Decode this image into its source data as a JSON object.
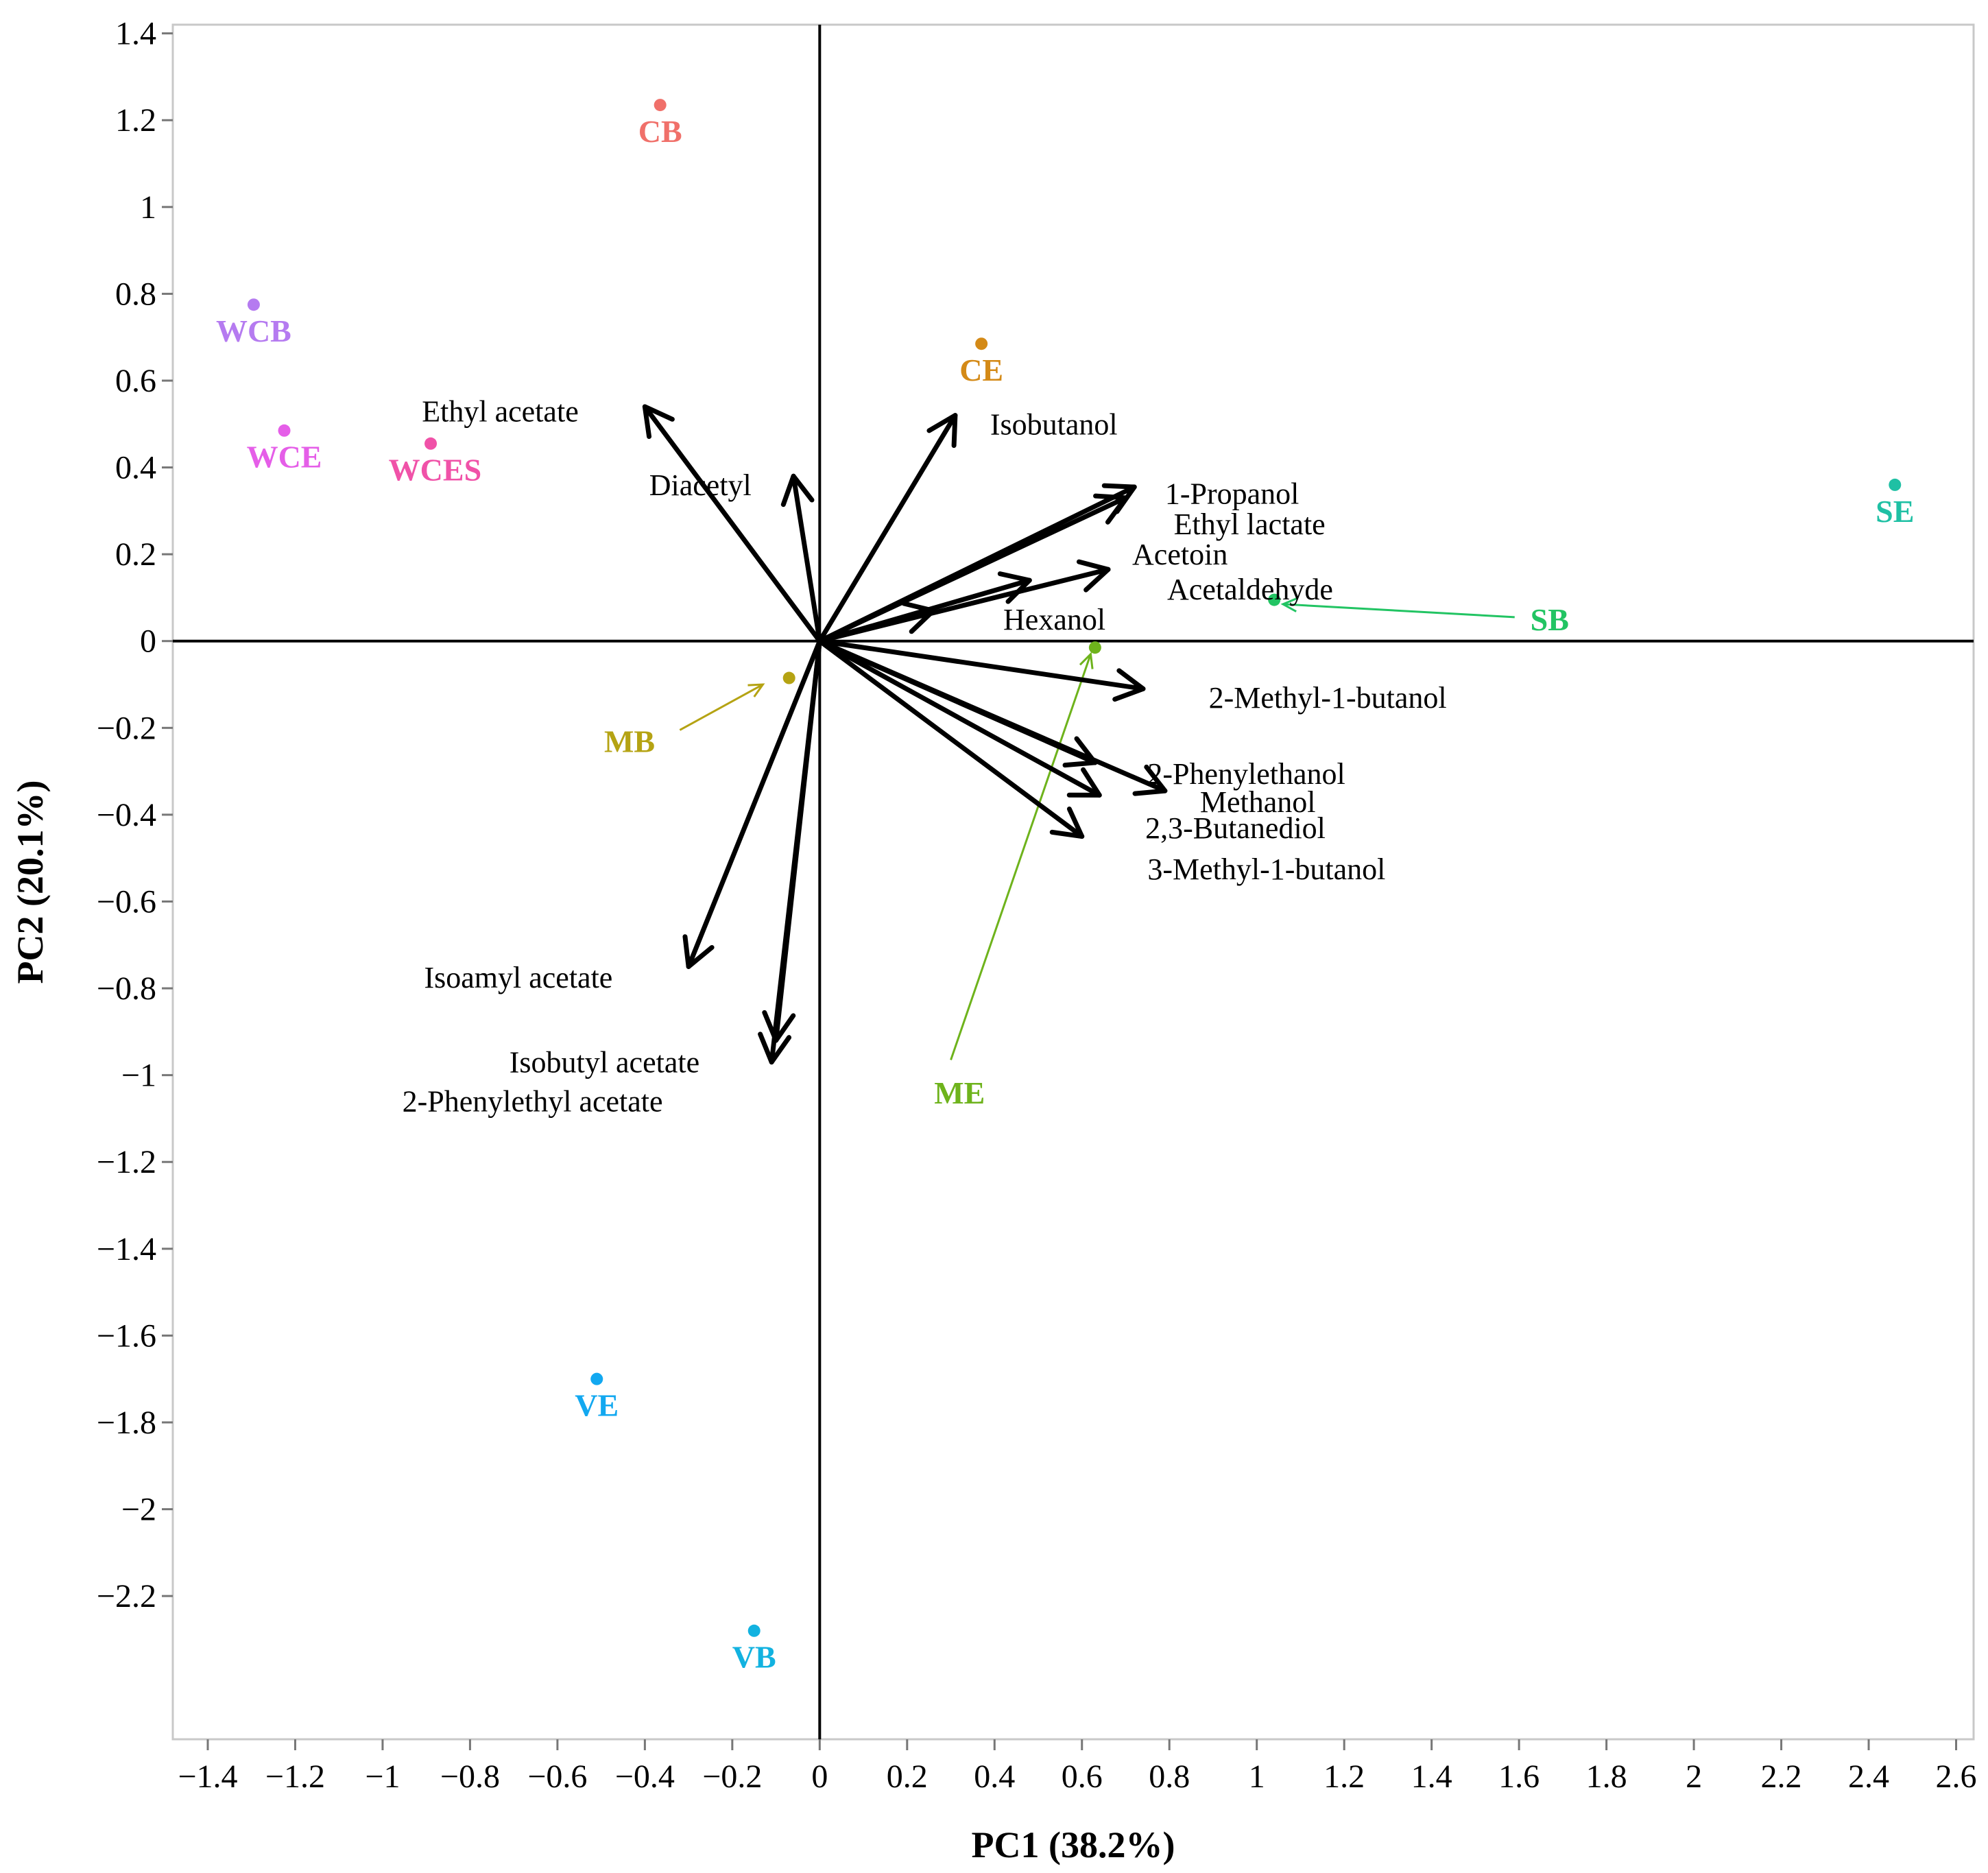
{
  "chart_data": {
    "type": "scatter",
    "xlabel": "PC1 (38.2%)",
    "ylabel": "PC2 (20.1%)",
    "xlim": [
      -1.48,
      2.64
    ],
    "ylim": [
      -2.53,
      1.42
    ],
    "x_ticks": [
      {
        "v": -1.4,
        "label": "−1.4"
      },
      {
        "v": -1.2,
        "label": "−1.2"
      },
      {
        "v": -1.0,
        "label": "−1"
      },
      {
        "v": -0.8,
        "label": "−0.8"
      },
      {
        "v": -0.6,
        "label": "−0.6"
      },
      {
        "v": -0.4,
        "label": "−0.4"
      },
      {
        "v": -0.2,
        "label": "−0.2"
      },
      {
        "v": 0,
        "label": "0"
      },
      {
        "v": 0.2,
        "label": "0.2"
      },
      {
        "v": 0.4,
        "label": "0.4"
      },
      {
        "v": 0.6,
        "label": "0.6"
      },
      {
        "v": 0.8,
        "label": "0.8"
      },
      {
        "v": 1.0,
        "label": "1"
      },
      {
        "v": 1.2,
        "label": "1.2"
      },
      {
        "v": 1.4,
        "label": "1.4"
      },
      {
        "v": 1.6,
        "label": "1.6"
      },
      {
        "v": 1.8,
        "label": "1.8"
      },
      {
        "v": 2.0,
        "label": "2"
      },
      {
        "v": 2.2,
        "label": "2.2"
      },
      {
        "v": 2.4,
        "label": "2.4"
      },
      {
        "v": 2.6,
        "label": "2.6"
      }
    ],
    "y_ticks": [
      {
        "v": 1.4,
        "label": "1.4"
      },
      {
        "v": 1.2,
        "label": "1.2"
      },
      {
        "v": 1.0,
        "label": "1"
      },
      {
        "v": 0.8,
        "label": "0.8"
      },
      {
        "v": 0.6,
        "label": "0.6"
      },
      {
        "v": 0.4,
        "label": "0.4"
      },
      {
        "v": 0.2,
        "label": "0.2"
      },
      {
        "v": 0,
        "label": "0"
      },
      {
        "v": -0.2,
        "label": "−0.2"
      },
      {
        "v": -0.4,
        "label": "−0.4"
      },
      {
        "v": -0.6,
        "label": "−0.6"
      },
      {
        "v": -0.8,
        "label": "−0.8"
      },
      {
        "v": -1.0,
        "label": "−1"
      },
      {
        "v": -1.2,
        "label": "−1.2"
      },
      {
        "v": -1.4,
        "label": "−1.4"
      },
      {
        "v": -1.6,
        "label": "−1.6"
      },
      {
        "v": -1.8,
        "label": "−1.8"
      },
      {
        "v": -2.0,
        "label": "−2"
      },
      {
        "v": -2.2,
        "label": "−2.2"
      }
    ],
    "grid": false,
    "samples": [
      {
        "name": "CB",
        "x": -0.365,
        "y": 1.235,
        "color": "#f0706a",
        "label_at": [
          -0.365,
          1.175
        ],
        "anchor": "middle"
      },
      {
        "name": "WCB",
        "x": -1.295,
        "y": 0.775,
        "color": "#b57bf0",
        "label_at": [
          -1.295,
          0.715
        ],
        "anchor": "middle"
      },
      {
        "name": "WCE",
        "x": -1.225,
        "y": 0.485,
        "color": "#e55ee8",
        "label_at": [
          -1.225,
          0.425
        ],
        "anchor": "middle"
      },
      {
        "name": "WCES",
        "x": -0.89,
        "y": 0.455,
        "color": "#f052a8",
        "label_at": [
          -0.88,
          0.395
        ],
        "anchor": "middle"
      },
      {
        "name": "CE",
        "x": 0.37,
        "y": 0.685,
        "color": "#d48a17",
        "label_at": [
          0.37,
          0.625
        ],
        "anchor": "middle"
      },
      {
        "name": "SE",
        "x": 2.46,
        "y": 0.36,
        "color": "#1fc0a4",
        "label_at": [
          2.46,
          0.3
        ],
        "anchor": "middle"
      },
      {
        "name": "SB",
        "x": 1.04,
        "y": 0.095,
        "color": "#22c463",
        "label_at": [
          1.67,
          0.05
        ],
        "anchor": "middle",
        "pointer_from": [
          1.59,
          0.055
        ],
        "pointer_to": [
          1.06,
          0.085
        ]
      },
      {
        "name": "MB",
        "x": -0.07,
        "y": -0.085,
        "color": "#b5a313",
        "label_at": [
          -0.435,
          -0.23
        ],
        "anchor": "middle",
        "pointer_from": [
          -0.32,
          -0.205
        ],
        "pointer_to": [
          -0.13,
          -0.1
        ]
      },
      {
        "name": "ME",
        "x": 0.63,
        "y": -0.015,
        "color": "#6eb31c",
        "label_at": [
          0.32,
          -1.04
        ],
        "anchor": "middle",
        "pointer_from": [
          0.3,
          -0.965
        ],
        "pointer_to": [
          0.62,
          -0.03
        ]
      },
      {
        "name": "VE",
        "x": -0.51,
        "y": -1.7,
        "color": "#12a8f0",
        "label_at": [
          -0.51,
          -1.76
        ],
        "anchor": "middle"
      },
      {
        "name": "VB",
        "x": -0.15,
        "y": -2.28,
        "color": "#12b2e0",
        "label_at": [
          -0.15,
          -2.34
        ],
        "anchor": "middle"
      }
    ],
    "loadings": [
      {
        "name": "Ethyl acetate",
        "x": -0.4,
        "y": 0.54,
        "label_at": [
          -0.91,
          0.53
        ],
        "anchor": "start"
      },
      {
        "name": "Diacetyl",
        "x": -0.06,
        "y": 0.38,
        "label_at": [
          -0.39,
          0.36
        ],
        "anchor": "start"
      },
      {
        "name": "Isobutanol",
        "x": 0.31,
        "y": 0.52,
        "label_at": [
          0.39,
          0.5
        ],
        "anchor": "start"
      },
      {
        "name": "1-Propanol",
        "x": 0.72,
        "y": 0.355,
        "label_at": [
          0.79,
          0.34
        ],
        "anchor": "start"
      },
      {
        "name": "Ethyl lactate",
        "x": 0.7,
        "y": 0.33,
        "label_at": [
          0.81,
          0.27
        ],
        "anchor": "start"
      },
      {
        "name": "Acetoin",
        "x": 0.66,
        "y": 0.165,
        "label_at": [
          0.715,
          0.2
        ],
        "anchor": "start"
      },
      {
        "name": "Acetaldehyde",
        "x": 0.48,
        "y": 0.14,
        "label_at": [
          0.795,
          0.12
        ],
        "anchor": "start"
      },
      {
        "name": "Hexanol",
        "x": 0.26,
        "y": 0.07,
        "label_at": [
          0.42,
          0.05
        ],
        "anchor": "start"
      },
      {
        "name": "2-Methyl-1-butanol",
        "x": 0.74,
        "y": -0.11,
        "label_at": [
          0.89,
          -0.13
        ],
        "anchor": "start"
      },
      {
        "name": "2-Phenylethanol",
        "x": 0.63,
        "y": -0.28,
        "label_at": [
          0.75,
          -0.305
        ],
        "anchor": "start"
      },
      {
        "name": "Methanol",
        "x": 0.79,
        "y": -0.345,
        "label_at": [
          0.87,
          -0.37
        ],
        "anchor": "start"
      },
      {
        "name": "2,3-Butanediol",
        "x": 0.64,
        "y": -0.355,
        "label_at": [
          0.745,
          -0.43
        ],
        "anchor": "start"
      },
      {
        "name": "3-Methyl-1-butanol",
        "x": 0.6,
        "y": -0.45,
        "label_at": [
          0.75,
          -0.525
        ],
        "anchor": "start"
      },
      {
        "name": "Isoamyl acetate",
        "x": -0.3,
        "y": -0.75,
        "label_at": [
          -0.905,
          -0.775
        ],
        "anchor": "start"
      },
      {
        "name": "Isobutyl acetate",
        "x": -0.1,
        "y": -0.92,
        "label_at": [
          -0.71,
          -0.97
        ],
        "anchor": "start"
      },
      {
        "name": "2-Phenylethyl acetate",
        "x": -0.11,
        "y": -0.97,
        "label_at": [
          -0.955,
          -1.06
        ],
        "anchor": "start"
      }
    ]
  }
}
